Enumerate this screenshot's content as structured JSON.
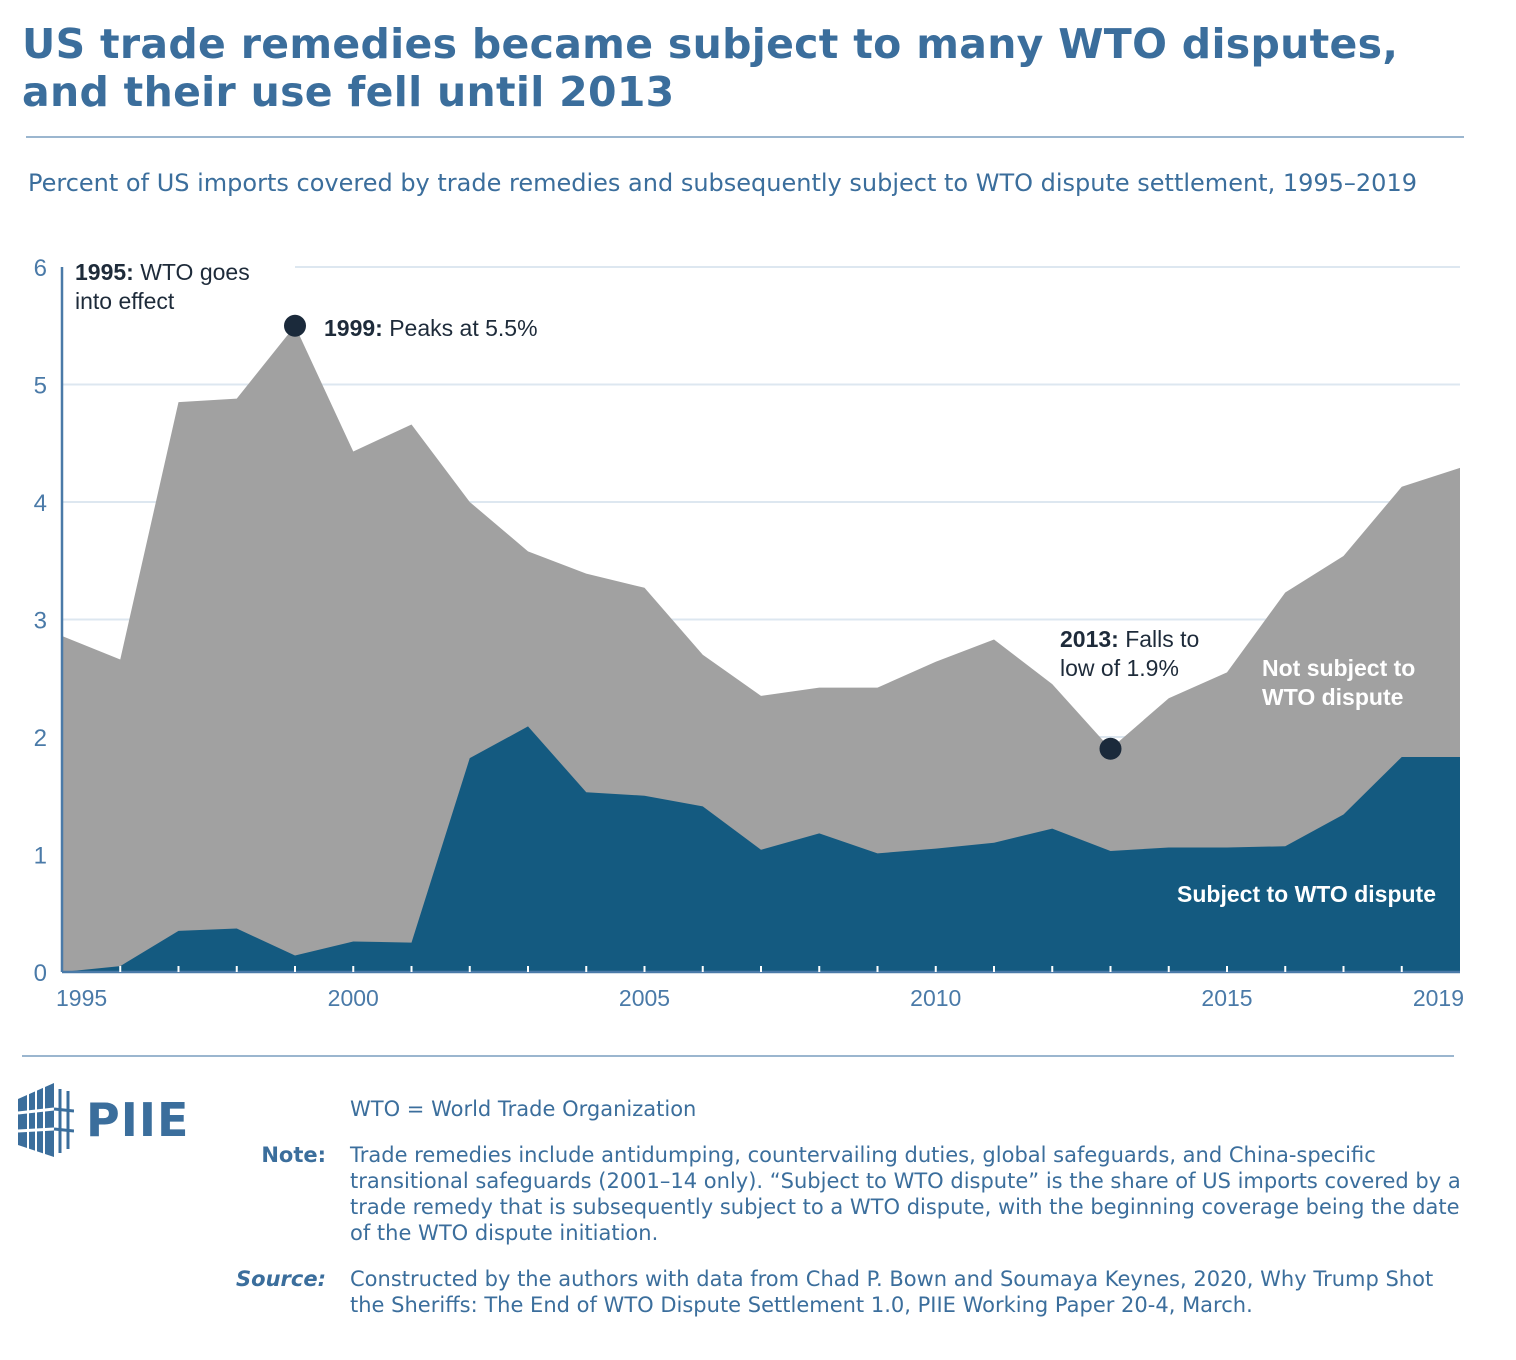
{
  "header": {
    "title_line1": "US trade remedies became subject to many WTO disputes,",
    "title_line2": "and their use fell until 2013",
    "subtitle": "Percent of US imports covered by trade remedies and subsequently subject to WTO dispute settlement, 1995–2019"
  },
  "chart_data": {
    "type": "area",
    "stacked": false,
    "x": [
      1995,
      1996,
      1997,
      1998,
      1999,
      2000,
      2001,
      2002,
      2003,
      2004,
      2005,
      2006,
      2007,
      2008,
      2009,
      2010,
      2011,
      2012,
      2013,
      2014,
      2015,
      2016,
      2017,
      2018,
      2019
    ],
    "series": [
      {
        "name": "Not subject to WTO dispute",
        "label_line1": "Not subject to",
        "label_line2": "WTO dispute",
        "role": "total coverage",
        "color": "#a1a1a1",
        "values": [
          2.86,
          2.66,
          4.85,
          4.88,
          5.5,
          4.43,
          4.66,
          4.0,
          3.58,
          3.39,
          3.27,
          2.7,
          2.35,
          2.42,
          2.42,
          2.64,
          2.83,
          2.45,
          1.9,
          2.33,
          2.55,
          3.23,
          3.54,
          4.13,
          4.29
        ]
      },
      {
        "name": "Subject to WTO dispute",
        "color": "#145a80",
        "values": [
          0.0,
          0.05,
          0.35,
          0.37,
          0.14,
          0.26,
          0.25,
          1.82,
          2.09,
          1.53,
          1.5,
          1.41,
          1.04,
          1.18,
          1.01,
          1.05,
          1.1,
          1.22,
          1.03,
          1.06,
          1.06,
          1.07,
          1.34,
          1.83,
          1.83
        ]
      }
    ],
    "ylim": [
      0,
      6
    ],
    "yticks": [
      "0",
      "1",
      "2",
      "3",
      "4",
      "5",
      "6"
    ],
    "xticklabels": [
      "1995",
      "2000",
      "2005",
      "2010",
      "2015",
      "2019"
    ],
    "xlim": [
      1995,
      2019
    ],
    "grid": "horizontal",
    "annotations": [
      {
        "bold": "1995:",
        "text": " WTO goes",
        "text2": "into effect"
      },
      {
        "bold": "1999:",
        "text": " Peaks at 5.5%",
        "x": 1999,
        "y": 5.5
      },
      {
        "bold": "2013:",
        "text": " Falls to",
        "text2": "low of 1.9%",
        "x": 2013,
        "y": 1.9
      }
    ]
  },
  "footer": {
    "logo": "PIIE",
    "abbrev": "WTO = World Trade Organization",
    "note_label": "Note:",
    "note": "Trade remedies include antidumping, countervailing duties, global safeguards, and China-specific transitional safeguards (2001–14 only). “Subject to WTO dispute” is the share of US imports covered by a trade remedy that is subsequently subject to a WTO dispute, with the beginning coverage being the date of the WTO dispute initiation.",
    "source_label": "Source:",
    "source": "Constructed by the authors with data from Chad P. Bown and Soumaya Keynes, 2020, Why Trump Shot the Sheriffs: The End of WTO Dispute Settlement 1.0, PIIE Working Paper 20-4, March."
  }
}
